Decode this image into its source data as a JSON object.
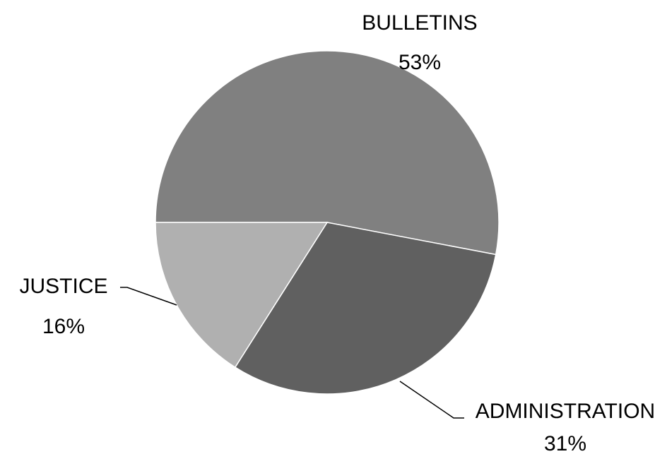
{
  "chart_data": {
    "type": "pie",
    "categories": [
      "BULLETINS",
      "ADMINISTRATION",
      "JUSTICE"
    ],
    "values": [
      53,
      31,
      16
    ],
    "value_labels": [
      "53%",
      "31%",
      "16%"
    ],
    "colors": [
      "#808080",
      "#606060",
      "#b0b0b0"
    ]
  }
}
